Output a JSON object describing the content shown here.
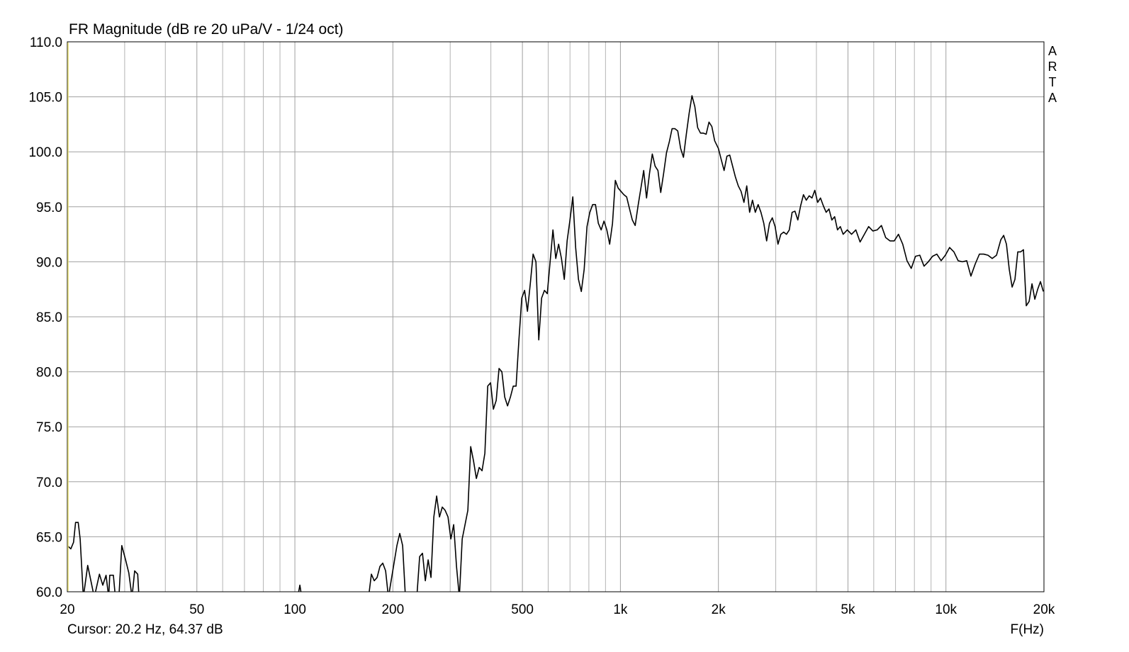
{
  "chart_data": {
    "type": "line",
    "title": "FR Magnitude (dB re 20 uPa/V - 1/24 oct)",
    "side_label": "ARTA",
    "x_label": "F(Hz)",
    "cursor": "Cursor: 20.2 Hz, 64.37 dB",
    "x_scale": "log",
    "xlim": [
      20,
      20000
    ],
    "ylim": [
      60,
      110
    ],
    "xticks": [
      20,
      50,
      100,
      200,
      500,
      {
        "value": 1000,
        "label": "1k"
      },
      {
        "value": 2000,
        "label": "2k"
      },
      {
        "value": 5000,
        "label": "5k"
      },
      {
        "value": 10000,
        "label": "10k"
      },
      {
        "value": 20000,
        "label": "20k"
      }
    ],
    "x_minor_grid": [
      30,
      40,
      60,
      70,
      80,
      90,
      300,
      400,
      600,
      700,
      800,
      900,
      3000,
      4000,
      6000,
      7000,
      8000,
      9000
    ],
    "yticks": [
      {
        "value": 60,
        "label": "60.0"
      },
      {
        "value": 65,
        "label": "65.0"
      },
      {
        "value": 70,
        "label": "70.0"
      },
      {
        "value": 75,
        "label": "75.0"
      },
      {
        "value": 80,
        "label": "80.0"
      },
      {
        "value": 85,
        "label": "85.0"
      },
      {
        "value": 90,
        "label": "90.0"
      },
      {
        "value": 95,
        "label": "95.0"
      },
      {
        "value": 100,
        "label": "100.0"
      },
      {
        "value": 105,
        "label": "105.0"
      },
      {
        "value": 110,
        "label": "110.0"
      }
    ],
    "grid": true,
    "color": "#000000",
    "x": [
      20,
      20.5,
      20.9,
      21.2,
      21.6,
      21.9,
      22.4,
      23.1,
      24.2,
      25.1,
      25.7,
      26.3,
      26.8,
      27,
      27.7,
      28.1,
      28.8,
      29.4,
      30.2,
      30.9,
      31.6,
      32.2,
      32.9,
      33.2,
      50,
      102,
      103.6,
      105,
      150,
      168.4,
      171.8,
      175.3,
      178.9,
      182.5,
      186.2,
      190,
      193.8,
      205.8,
      210,
      214.3,
      218.6,
      236.9,
      241.7,
      246.6,
      251.6,
      256.7,
      261.9,
      267.2,
      272.6,
      278.1,
      283.7,
      289.5,
      295.4,
      301.4,
      307.5,
      313.7,
      320.1,
      326.6,
      333.2,
      339.9,
      346.8,
      353.8,
      361,
      368.3,
      375.8,
      383.4,
      391.2,
      399.1,
      407.2,
      415.4,
      423.8,
      432.4,
      441.2,
      450.1,
      459.3,
      468.6,
      478.1,
      487.8,
      497.7,
      507.8,
      518.1,
      528.6,
      539.3,
      550.2,
      561.3,
      572.7,
      584.3,
      596.1,
      608.2,
      620.5,
      633.1,
      645.9,
      659,
      672.4,
      686,
      699.9,
      714.1,
      728.6,
      743.3,
      758.4,
      773.8,
      789.5,
      805.5,
      821.8,
      838.4,
      855.4,
      872.7,
      890.4,
      908.4,
      926.8,
      945.6,
      964.7,
      984.3,
      1004,
      1025,
      1045,
      1067,
      1088,
      1110,
      1133,
      1156,
      1179,
      1203,
      1228,
      1253,
      1278,
      1304,
      1330,
      1357,
      1385,
      1413,
      1441,
      1471,
      1500,
      1531,
      1562,
      1594,
      1626,
      1659,
      1693,
      1727,
      1762,
      1798,
      1834,
      1871,
      1909,
      1948,
      2000,
      2040,
      2082,
      2124,
      2167,
      2211,
      2256,
      2302,
      2348,
      2396,
      2444,
      2494,
      2545,
      2596,
      2649,
      2702,
      2757,
      2813,
      2870,
      2928,
      2987,
      3048,
      3110,
      3173,
      3237,
      3302,
      3369,
      3437,
      3507,
      3578,
      3650,
      3724,
      3800,
      3877,
      3955,
      4035,
      4117,
      4200,
      4285,
      4372,
      4461,
      4551,
      4643,
      4737,
      4833,
      4977,
      5129,
      5286,
      5448,
      5615,
      5787,
      5964,
      6147,
      6335,
      6529,
      6729,
      6935,
      7147,
      7366,
      7591,
      7823,
      8063,
      8310,
      8564,
      8826,
      9096,
      9375,
      9662,
      9958,
      10260,
      10580,
      10900,
      11230,
      11580,
      11930,
      12300,
      12670,
      13060,
      13460,
      13870,
      14300,
      14740,
      15040,
      15340,
      15650,
      15970,
      16290,
      16620,
      16960,
      17300,
      17650,
      18010,
      18380,
      18750,
      19130,
      19510,
      19910
    ],
    "values": [
      64.2,
      63.9,
      64.5,
      66.3,
      66.3,
      64.8,
      59.5,
      62.4,
      59.5,
      61.6,
      60.6,
      61.5,
      59.5,
      61.5,
      61.5,
      59.5,
      59.5,
      64.2,
      62.9,
      61.7,
      59.5,
      61.9,
      61.6,
      59.5,
      null,
      59.5,
      60.6,
      59.5,
      null,
      59.5,
      61.6,
      61.0,
      61.3,
      62.3,
      62.6,
      61.9,
      59.5,
      64.2,
      65.3,
      64.2,
      59.5,
      59.5,
      63.2,
      63.5,
      61.0,
      62.9,
      61.3,
      66.8,
      68.7,
      66.8,
      67.7,
      67.4,
      66.8,
      64.8,
      66.1,
      62.3,
      59.5,
      64.8,
      66.1,
      67.4,
      73.2,
      71.9,
      70.3,
      71.3,
      71.0,
      72.6,
      78.7,
      79.0,
      76.6,
      77.4,
      80.3,
      80.0,
      77.7,
      76.9,
      77.7,
      78.7,
      78.7,
      82.9,
      86.7,
      87.4,
      85.5,
      88.0,
      90.7,
      90.0,
      82.9,
      86.7,
      87.4,
      87.1,
      90.0,
      92.9,
      90.3,
      91.6,
      90.3,
      88.4,
      91.9,
      93.8,
      95.9,
      91.3,
      88.4,
      87.3,
      89.3,
      93.2,
      94.5,
      95.2,
      95.2,
      93.5,
      92.9,
      93.7,
      92.9,
      91.6,
      93.5,
      97.4,
      96.7,
      96.4,
      96.1,
      95.9,
      94.8,
      93.8,
      93.3,
      95.1,
      96.7,
      98.3,
      95.8,
      98.0,
      99.8,
      98.7,
      98.3,
      96.3,
      98.0,
      99.9,
      100.9,
      102.1,
      102.1,
      101.9,
      100.3,
      99.5,
      101.6,
      103.5,
      105.1,
      104.1,
      102.2,
      101.7,
      101.7,
      101.6,
      102.7,
      102.3,
      101.0,
      100.3,
      99.3,
      98.3,
      99.6,
      99.7,
      98.7,
      97.7,
      96.9,
      96.4,
      95.4,
      96.9,
      94.5,
      95.6,
      94.5,
      95.2,
      94.5,
      93.5,
      91.9,
      93.5,
      94.0,
      93.2,
      91.6,
      92.5,
      92.7,
      92.5,
      92.9,
      94.5,
      94.6,
      93.8,
      95.1,
      96.1,
      95.6,
      96.0,
      95.8,
      96.5,
      95.4,
      95.8,
      95.1,
      94.5,
      94.8,
      93.8,
      94.1,
      92.9,
      93.2,
      92.5,
      92.9,
      92.5,
      92.9,
      91.8,
      92.5,
      93.2,
      92.8,
      92.9,
      93.3,
      92.2,
      91.9,
      91.9,
      92.5,
      91.6,
      90.1,
      89.4,
      90.5,
      90.6,
      89.6,
      90.0,
      90.5,
      90.7,
      90.1,
      90.6,
      91.3,
      90.9,
      90.1,
      90.0,
      90.1,
      88.7,
      89.8,
      90.7,
      90.7,
      90.6,
      90.3,
      90.6,
      92.0,
      92.4,
      91.6,
      89.3,
      87.7,
      88.4,
      90.9,
      90.9,
      91.1,
      86.0,
      86.4,
      88.0,
      86.6,
      87.5,
      88.2,
      87.3
    ]
  }
}
